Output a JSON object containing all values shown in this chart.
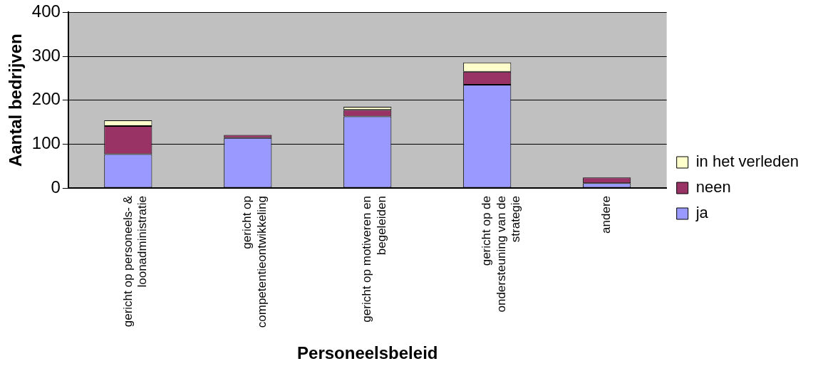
{
  "chart_data": {
    "type": "bar",
    "stacked": true,
    "xlabel": "Personeelsbeleid",
    "ylabel": "Aantal bedrijven",
    "categories": [
      "gericht op personeels- & loonadministratie",
      "gericht op competentieontwikkeling",
      "gericht op motiveren en begeleiden",
      "gericht op de ondersteuning van de strategie",
      "andere"
    ],
    "series": [
      {
        "name": "ja",
        "color": "#9999ff",
        "values": [
          77,
          114,
          163,
          235,
          11
        ]
      },
      {
        "name": "neen",
        "color": "#993366",
        "values": [
          64,
          7,
          15,
          30,
          13
        ]
      },
      {
        "name": "in het verleden",
        "color": "#ffffcc",
        "values": [
          13,
          0,
          7,
          21,
          0
        ]
      }
    ],
    "ylim": [
      0,
      400
    ],
    "yticks": [
      0,
      100,
      200,
      300,
      400
    ],
    "grid": "y",
    "legend": "right"
  }
}
